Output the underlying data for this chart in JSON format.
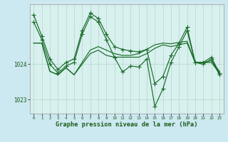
{
  "xlabel": "Graphe pression niveau de la mer (hPa)",
  "bg_color": "#cce8f0",
  "plot_bg_color": "#d8f0ee",
  "grid_color": "#b0d8cc",
  "line_color": "#1a6b2a",
  "ylim": [
    1022.6,
    1025.7
  ],
  "xlim": [
    -0.5,
    23.5
  ],
  "yticks": [
    1023,
    1024
  ],
  "xticks": [
    0,
    1,
    2,
    3,
    4,
    5,
    6,
    7,
    8,
    9,
    10,
    11,
    12,
    13,
    14,
    15,
    16,
    17,
    18,
    19,
    20,
    21,
    22,
    23
  ],
  "series1": [
    1025.4,
    1024.8,
    1024.15,
    1023.85,
    1024.05,
    1024.15,
    1024.95,
    1025.45,
    1025.3,
    1024.85,
    1024.5,
    1024.42,
    1024.38,
    1024.35,
    1024.42,
    1023.45,
    1023.65,
    1024.25,
    1024.6,
    1025.05,
    1024.05,
    1024.05,
    1024.2,
    1023.75
  ],
  "series2": [
    1024.6,
    1024.6,
    1023.8,
    1023.7,
    1023.9,
    1023.7,
    1024.0,
    1024.3,
    1024.4,
    1024.25,
    1024.2,
    1024.2,
    1024.2,
    1024.2,
    1024.3,
    1024.45,
    1024.55,
    1024.5,
    1024.55,
    1024.6,
    1024.05,
    1024.05,
    1024.05,
    1023.75
  ],
  "series3": [
    1024.6,
    1024.6,
    1023.8,
    1023.7,
    1023.9,
    1023.7,
    1024.05,
    1024.4,
    1024.5,
    1024.4,
    1024.3,
    1024.25,
    1024.25,
    1024.3,
    1024.42,
    1024.55,
    1024.6,
    1024.58,
    1024.62,
    1024.65,
    1024.05,
    1024.05,
    1024.1,
    1023.8
  ],
  "series4": [
    1025.2,
    1024.7,
    1024.0,
    1023.75,
    1023.95,
    1024.05,
    1024.85,
    1025.35,
    1025.2,
    1024.7,
    1024.2,
    1023.78,
    1023.95,
    1023.92,
    1024.15,
    1022.8,
    1023.3,
    1024.05,
    1024.5,
    1024.95,
    1024.05,
    1024.0,
    1024.15,
    1023.7
  ]
}
